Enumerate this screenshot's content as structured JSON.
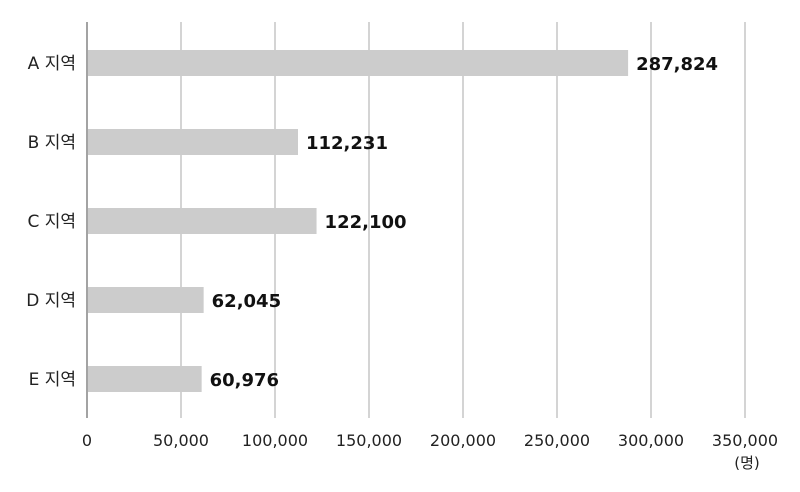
{
  "chart_data": {
    "type": "bar",
    "orientation": "horizontal",
    "categories": [
      "A 지역",
      "B 지역",
      "C 지역",
      "D 지역",
      "E 지역"
    ],
    "values": [
      287824,
      112231,
      122100,
      62045,
      60976
    ],
    "data_labels": [
      "287,824",
      "112,231",
      "122,100",
      "62,045",
      "60,976"
    ],
    "x_ticks": [
      0,
      50000,
      100000,
      150000,
      200000,
      250000,
      300000,
      350000
    ],
    "x_tick_labels": [
      "0",
      "50,000",
      "100,000",
      "150,000",
      "200,000",
      "250,000",
      "300,000",
      "350,000"
    ],
    "xlim": [
      0,
      350000
    ],
    "unit": "(명)",
    "grid": "vertical",
    "bar_color": "#cccccc",
    "grid_color": "#aaaaaa",
    "axis_color": "#666666"
  }
}
